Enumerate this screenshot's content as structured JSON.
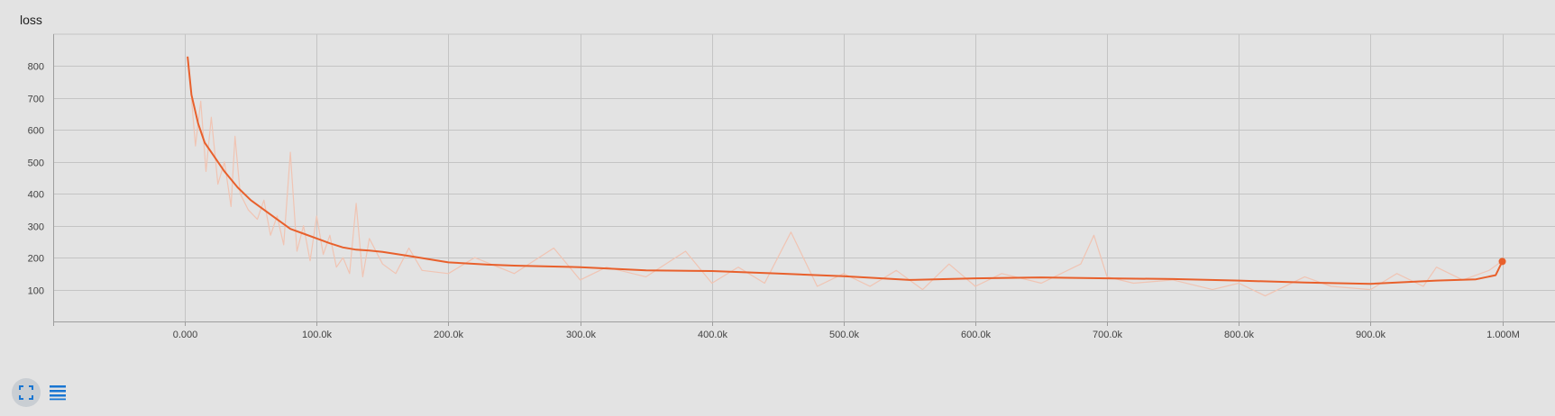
{
  "card": {
    "title": "loss"
  },
  "toolbar": {
    "expand_icon": "fullscreen-icon",
    "data_icon": "list-icon",
    "icon_color": "#1976d2"
  },
  "colors": {
    "smoothed": "#e8602c",
    "raw": "#f0c4b3",
    "grid": "#c4c4c4",
    "axis": "#9e9e9e"
  },
  "chart_data": {
    "type": "line",
    "title": "loss",
    "xlabel": "",
    "ylabel": "",
    "xlim": [
      -100000,
      1040000
    ],
    "ylim": [
      0,
      900
    ],
    "grid": true,
    "xticks": [
      0,
      100000,
      200000,
      300000,
      400000,
      500000,
      600000,
      700000,
      800000,
      900000,
      1000000
    ],
    "xtick_labels": [
      "0.000",
      "100.0k",
      "200.0k",
      "300.0k",
      "400.0k",
      "500.0k",
      "600.0k",
      "700.0k",
      "800.0k",
      "900.0k",
      "1.000M"
    ],
    "yticks": [
      100,
      200,
      300,
      400,
      500,
      600,
      700,
      800
    ],
    "ytick_labels": [
      "100",
      "200",
      "300",
      "400",
      "500",
      "600",
      "700",
      "800"
    ],
    "series": [
      {
        "role": "smoothed",
        "x": [
          2000,
          5000,
          10000,
          15000,
          20000,
          30000,
          40000,
          50000,
          60000,
          70000,
          80000,
          90000,
          100000,
          110000,
          120000,
          130000,
          140000,
          150000,
          170000,
          200000,
          230000,
          250000,
          300000,
          350000,
          400000,
          450000,
          500000,
          550000,
          600000,
          650000,
          700000,
          750000,
          800000,
          850000,
          900000,
          950000,
          980000,
          995000,
          1000000
        ],
        "y": [
          830,
          710,
          620,
          560,
          530,
          470,
          420,
          380,
          350,
          320,
          290,
          275,
          260,
          245,
          232,
          225,
          222,
          218,
          205,
          185,
          178,
          175,
          170,
          160,
          158,
          150,
          142,
          130,
          135,
          138,
          135,
          133,
          128,
          122,
          118,
          128,
          132,
          145,
          188
        ]
      },
      {
        "role": "raw",
        "x": [
          5000,
          8000,
          12000,
          16000,
          20000,
          25000,
          30000,
          35000,
          38000,
          42000,
          48000,
          55000,
          60000,
          65000,
          70000,
          75000,
          80000,
          85000,
          90000,
          95000,
          100000,
          105000,
          110000,
          115000,
          120000,
          125000,
          130000,
          135000,
          140000,
          150000,
          160000,
          170000,
          180000,
          200000,
          220000,
          250000,
          280000,
          300000,
          320000,
          350000,
          380000,
          400000,
          420000,
          440000,
          460000,
          480000,
          500000,
          520000,
          540000,
          560000,
          580000,
          600000,
          620000,
          650000,
          680000,
          690000,
          700000,
          720000,
          750000,
          780000,
          800000,
          820000,
          850000,
          870000,
          900000,
          920000,
          940000,
          950000,
          970000,
          990000,
          1000000
        ],
        "y": [
          700,
          550,
          690,
          470,
          640,
          430,
          500,
          360,
          580,
          400,
          350,
          320,
          380,
          270,
          330,
          240,
          530,
          220,
          300,
          190,
          330,
          210,
          270,
          170,
          200,
          150,
          370,
          140,
          260,
          180,
          150,
          230,
          160,
          150,
          200,
          150,
          230,
          130,
          170,
          140,
          220,
          120,
          170,
          120,
          280,
          110,
          150,
          110,
          160,
          100,
          180,
          110,
          150,
          120,
          180,
          270,
          140,
          120,
          130,
          100,
          120,
          80,
          140,
          110,
          100,
          150,
          110,
          170,
          130,
          160,
          190
        ]
      }
    ]
  }
}
